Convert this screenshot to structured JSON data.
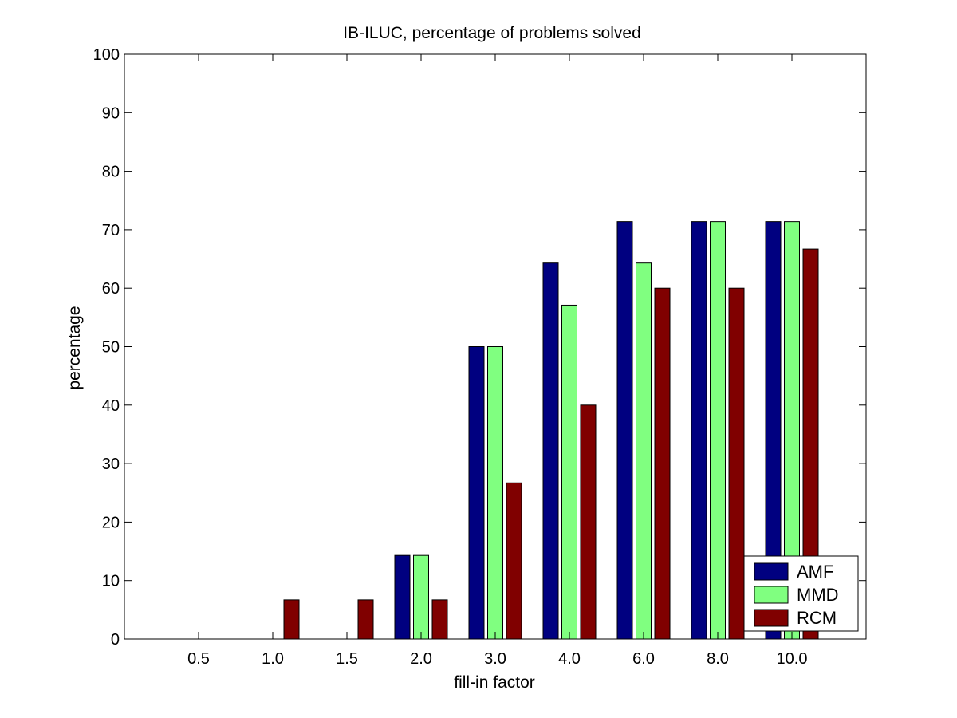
{
  "chart_data": {
    "type": "bar",
    "title": "IB-ILUC, percentage of problems solved",
    "xlabel": "fill-in factor",
    "ylabel": "percentage",
    "categories": [
      "0.5",
      "1.0",
      "1.5",
      "2.0",
      "3.0",
      "4.0",
      "6.0",
      "8.0",
      "10.0"
    ],
    "series": [
      {
        "name": "AMF",
        "color": "#000080",
        "values": [
          0,
          0,
          0,
          14.3,
          50.0,
          64.3,
          71.4,
          71.4,
          71.4
        ]
      },
      {
        "name": "MMD",
        "color": "#80ff80",
        "values": [
          0,
          0,
          0,
          14.3,
          50.0,
          57.1,
          64.3,
          71.4,
          71.4
        ]
      },
      {
        "name": "RCM",
        "color": "#800000",
        "values": [
          0,
          6.7,
          6.7,
          6.7,
          26.7,
          40.0,
          60.0,
          60.0,
          66.7
        ]
      }
    ],
    "ylim": [
      0,
      100
    ],
    "yticks": [
      0,
      10,
      20,
      30,
      40,
      50,
      60,
      70,
      80,
      90,
      100
    ],
    "grid": false,
    "legend_position": "bottom-right"
  }
}
